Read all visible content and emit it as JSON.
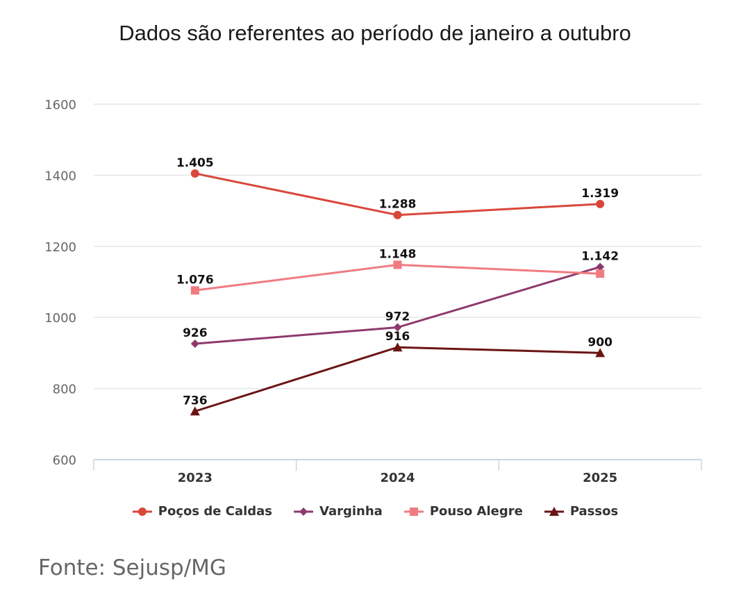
{
  "chart_data": {
    "type": "line",
    "title": "Dados são referentes ao período de janeiro a outubro",
    "xlabel": "",
    "ylabel": "",
    "categories": [
      "2023",
      "2024",
      "2025"
    ],
    "ylim": [
      600,
      1600
    ],
    "yticks": [
      600,
      800,
      1000,
      1200,
      1400,
      1600
    ],
    "grid": true,
    "legend_position": "bottom",
    "series": [
      {
        "name": "Poços de Caldas",
        "color": "#d9473b",
        "marker": "circle",
        "values": [
          1405,
          1288,
          1319
        ],
        "labels": [
          "1.405",
          "1.288",
          "1.319"
        ]
      },
      {
        "name": "Varginha",
        "color": "#8e3a6d",
        "marker": "diamond",
        "values": [
          926,
          972,
          1142
        ],
        "labels": [
          "926",
          "972",
          "1.142"
        ]
      },
      {
        "name": "Pouso Alegre",
        "color": "#f07b80",
        "marker": "square",
        "values": [
          1076,
          1148,
          1123
        ],
        "labels": [
          "1.076",
          "1.148",
          ""
        ]
      },
      {
        "name": "Passos",
        "color": "#6b1414",
        "marker": "triangle",
        "values": [
          736,
          916,
          900
        ],
        "labels": [
          "736",
          "916",
          "900"
        ]
      }
    ]
  },
  "source": "Fonte: Sejusp/MG"
}
